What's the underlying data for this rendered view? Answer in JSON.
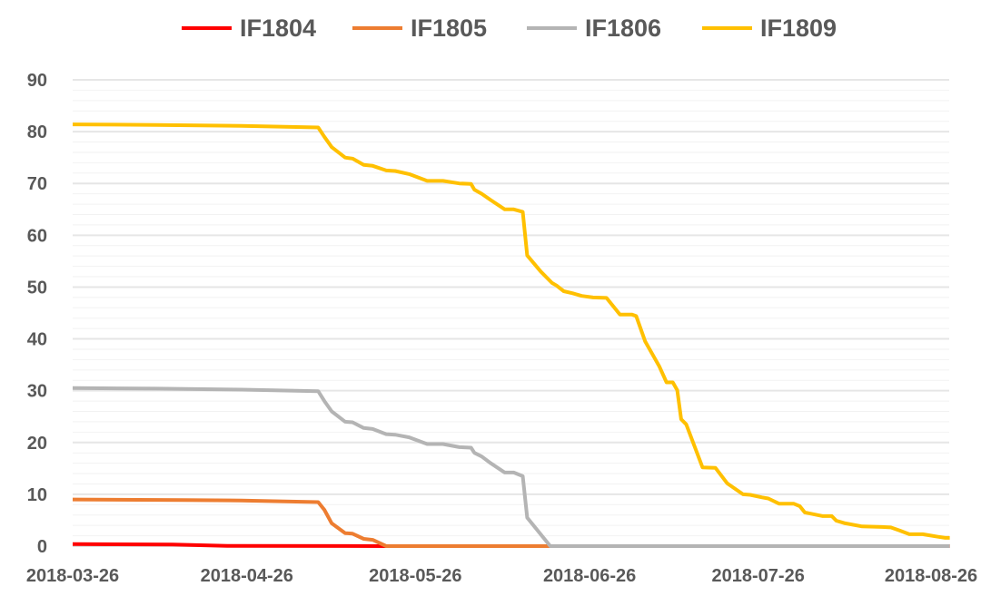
{
  "chart_data": {
    "type": "line",
    "title": "",
    "xlabel": "",
    "ylabel": "",
    "x_unit": "days since 2018-03-26",
    "xlim": [
      0,
      156
    ],
    "ylim": [
      0,
      90
    ],
    "y_ticks": [
      0,
      10,
      20,
      30,
      40,
      50,
      60,
      70,
      80,
      90
    ],
    "y_minor_step": 2,
    "x_ticks": [
      {
        "label": "2018-03-26",
        "x": 0
      },
      {
        "label": "2018-04-26",
        "x": 31
      },
      {
        "label": "2018-05-26",
        "x": 61
      },
      {
        "label": "2018-06-26",
        "x": 92
      },
      {
        "label": "2018-07-26",
        "x": 122
      },
      {
        "label": "2018-08-26",
        "x": 153
      }
    ],
    "grid": true,
    "legend_position": "top-center",
    "series": [
      {
        "name": "IF1804",
        "color": "#FF0000",
        "points": [
          [
            0,
            0.4
          ],
          [
            17.8,
            0.3
          ],
          [
            27.5,
            0.05
          ],
          [
            55.8,
            0
          ],
          [
            156.1,
            0
          ]
        ]
      },
      {
        "name": "IF1805",
        "color": "#ED7D31",
        "points": [
          [
            0,
            9.0
          ],
          [
            20,
            8.9
          ],
          [
            30,
            8.8
          ],
          [
            43.7,
            8.5
          ],
          [
            44.8,
            7
          ],
          [
            46.1,
            4.4
          ],
          [
            48.5,
            2.5
          ],
          [
            49.8,
            2.4
          ],
          [
            51.8,
            1.4
          ],
          [
            53.4,
            1.2
          ],
          [
            55.8,
            0
          ],
          [
            156.1,
            0
          ]
        ]
      },
      {
        "name": "IF1806",
        "color": "#B4B4B4",
        "points": [
          [
            0,
            30.5
          ],
          [
            15,
            30.4
          ],
          [
            30,
            30.2
          ],
          [
            43.7,
            29.9
          ],
          [
            44.8,
            28
          ],
          [
            46.1,
            26
          ],
          [
            48.5,
            24
          ],
          [
            49.8,
            23.9
          ],
          [
            51.8,
            22.8
          ],
          [
            53.4,
            22.6
          ],
          [
            55.8,
            21.6
          ],
          [
            57.4,
            21.5
          ],
          [
            59.9,
            21
          ],
          [
            63.1,
            19.7
          ],
          [
            65.9,
            19.7
          ],
          [
            68.8,
            19.1
          ],
          [
            70.9,
            19
          ],
          [
            71.5,
            18
          ],
          [
            72.8,
            17.3
          ],
          [
            74.4,
            16
          ],
          [
            76.9,
            14.2
          ],
          [
            78.5,
            14.2
          ],
          [
            80.1,
            13.5
          ],
          [
            80.9,
            5.5
          ],
          [
            85,
            0
          ],
          [
            156.1,
            0
          ]
        ]
      },
      {
        "name": "IF1809",
        "color": "#FFC000",
        "points": [
          [
            0,
            81.4
          ],
          [
            15,
            81.3
          ],
          [
            30,
            81.1
          ],
          [
            43.7,
            80.8
          ],
          [
            44.8,
            79
          ],
          [
            46.1,
            77
          ],
          [
            48.5,
            75
          ],
          [
            49.8,
            74.8
          ],
          [
            51.8,
            73.6
          ],
          [
            53.4,
            73.4
          ],
          [
            55.8,
            72.5
          ],
          [
            57.4,
            72.4
          ],
          [
            59.9,
            71.8
          ],
          [
            63.1,
            70.5
          ],
          [
            65.9,
            70.5
          ],
          [
            68.8,
            70
          ],
          [
            70.9,
            69.9
          ],
          [
            71.5,
            68.8
          ],
          [
            72.8,
            68
          ],
          [
            74.4,
            66.8
          ],
          [
            76.9,
            65
          ],
          [
            78.5,
            65
          ],
          [
            80.1,
            64.5
          ],
          [
            80.9,
            56.1
          ],
          [
            83.3,
            53
          ],
          [
            85.3,
            50.8
          ],
          [
            86.1,
            50.3
          ],
          [
            87.4,
            49.2
          ],
          [
            89,
            48.8
          ],
          [
            90.6,
            48.3
          ],
          [
            92.6,
            48
          ],
          [
            95,
            47.9
          ],
          [
            97.4,
            44.7
          ],
          [
            99.5,
            44.7
          ],
          [
            100.3,
            44.4
          ],
          [
            101.9,
            39.5
          ],
          [
            104.4,
            34.7
          ],
          [
            105.7,
            31.6
          ],
          [
            106.8,
            31.6
          ],
          [
            107.6,
            30.1
          ],
          [
            108.3,
            24.5
          ],
          [
            109.2,
            23.5
          ],
          [
            112.1,
            15.2
          ],
          [
            114.4,
            15.1
          ],
          [
            116.5,
            12.1
          ],
          [
            119.3,
            10
          ],
          [
            120.6,
            9.9
          ],
          [
            122.7,
            9.4
          ],
          [
            123.8,
            9.2
          ],
          [
            125.7,
            8.2
          ],
          [
            128.3,
            8.2
          ],
          [
            129.4,
            7.7
          ],
          [
            130.3,
            6.5
          ],
          [
            133.5,
            5.8
          ],
          [
            135.1,
            5.8
          ],
          [
            135.9,
            4.9
          ],
          [
            137.5,
            4.4
          ],
          [
            140.5,
            3.8
          ],
          [
            144,
            3.7
          ],
          [
            145.6,
            3.6
          ],
          [
            147.2,
            3
          ],
          [
            148.9,
            2.3
          ],
          [
            151.3,
            2.3
          ],
          [
            154,
            1.8
          ],
          [
            155.3,
            1.6
          ],
          [
            156.1,
            1.6
          ]
        ]
      }
    ]
  }
}
